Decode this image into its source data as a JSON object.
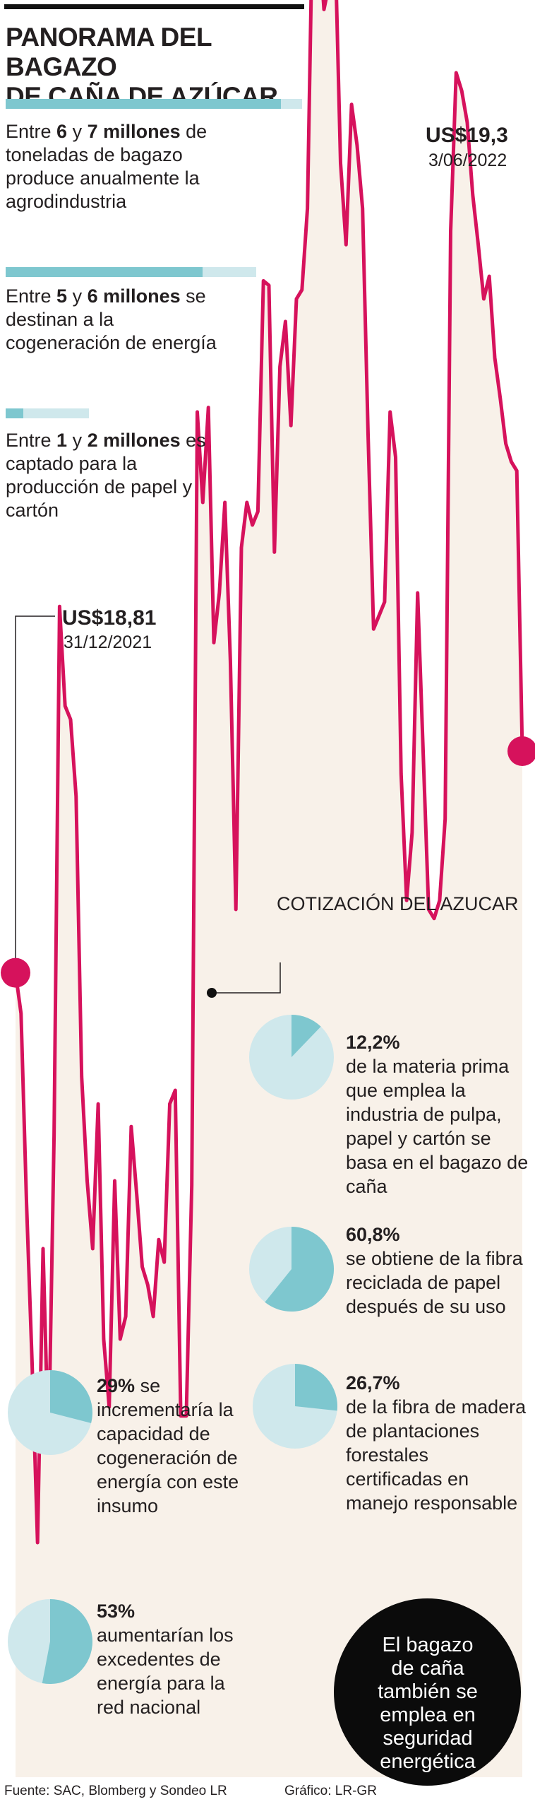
{
  "title": [
    "PANORAMA DEL BAGAZO",
    "DE CAÑA DE AZÚCAR"
  ],
  "stats": [
    {
      "pre": "Entre ",
      "a": "6",
      "mid": " y ",
      "b": "7 millones",
      "rest": "de toneladas de bagazo produce anualmente la agrodindustria",
      "low": 6,
      "high": 7
    },
    {
      "pre": "Entre ",
      "a": "5",
      "mid": " y ",
      "b": "6 millones",
      "rest": "se destinan a la cogeneración de energía",
      "low": 5,
      "high": 6
    },
    {
      "pre": "Entre ",
      "a": "1",
      "mid": " y ",
      "b": "2 millones",
      "rest": "es captado para la producción de papel y cartón",
      "low": 1,
      "high": 2
    }
  ],
  "chart_data": {
    "type": "area",
    "series_label": "COTIZACIÓN DEL AZUCAR",
    "values": [
      18.81,
      18.72,
      18.3,
      17.95,
      17.55,
      18.2,
      17.75,
      18.45,
      19.62,
      19.4,
      19.37,
      19.2,
      18.58,
      18.35,
      18.2,
      18.52,
      18.0,
      17.85,
      18.35,
      18.0,
      18.05,
      18.47,
      18.32,
      18.16,
      18.12,
      18.05,
      18.22,
      18.17,
      18.52,
      18.55,
      17.83,
      17.83,
      18.34,
      20.05,
      19.85,
      20.06,
      19.54,
      19.65,
      19.85,
      19.5,
      18.95,
      19.75,
      19.85,
      19.8,
      19.83,
      20.34,
      20.33,
      19.74,
      20.15,
      20.25,
      20.02,
      20.3,
      20.32,
      20.5,
      21.2,
      21.12,
      20.94,
      21.0,
      21.09,
      20.6,
      20.42,
      20.73,
      20.64,
      20.5,
      20.0,
      19.57,
      19.6,
      19.63,
      20.05,
      19.95,
      19.25,
      18.97,
      19.12,
      19.65,
      19.3,
      18.95,
      18.93,
      18.97,
      19.15,
      20.45,
      20.8,
      20.76,
      20.69,
      20.53,
      20.42,
      20.3,
      20.35,
      20.17,
      20.08,
      19.98,
      19.94,
      19.92,
      19.3
    ],
    "start": {
      "value": "US$18,81",
      "date": "31/12/2021"
    },
    "end": {
      "value": "US$19,3",
      "date": "3/06/2022"
    },
    "colors": {
      "line": "#d6125c",
      "fill": "#f8f1e9"
    }
  },
  "pies": [
    {
      "pct": "12,2%",
      "text": "de la materia prima que emplea la industria de pulpa, papel y cartón se basa en el bagazo de caña",
      "value": 12.2
    },
    {
      "pct": "60,8%",
      "text": "se obtiene de la fibra reciclada de papel después de su uso",
      "value": 60.8
    },
    {
      "pct": "26,7%",
      "text": "de la fibra de madera de plantaciones forestales certificadas en manejo responsable",
      "value": 26.7
    },
    {
      "pct": "29%",
      "text": "se incrementaría la capacidad de cogeneración de energía con este insumo",
      "value": 29
    },
    {
      "pct": "53%",
      "text": "aumentarían los excedentes de energía para la red nacional",
      "value": 53
    }
  ],
  "highlight": [
    "El bagazo",
    "de caña",
    "también se",
    "emplea en",
    "seguridad",
    "energética"
  ],
  "footer": {
    "source": "Fuente: SAC, Blomberg y Sondeo LR",
    "credit": "Gráfico: LR-GR"
  },
  "colors": {
    "pie_fill": "#7ec7cf",
    "pie_bg": "#cfe8ec",
    "bar_fill": "#7ec7cf",
    "bar_bg": "#cfe8ec"
  }
}
